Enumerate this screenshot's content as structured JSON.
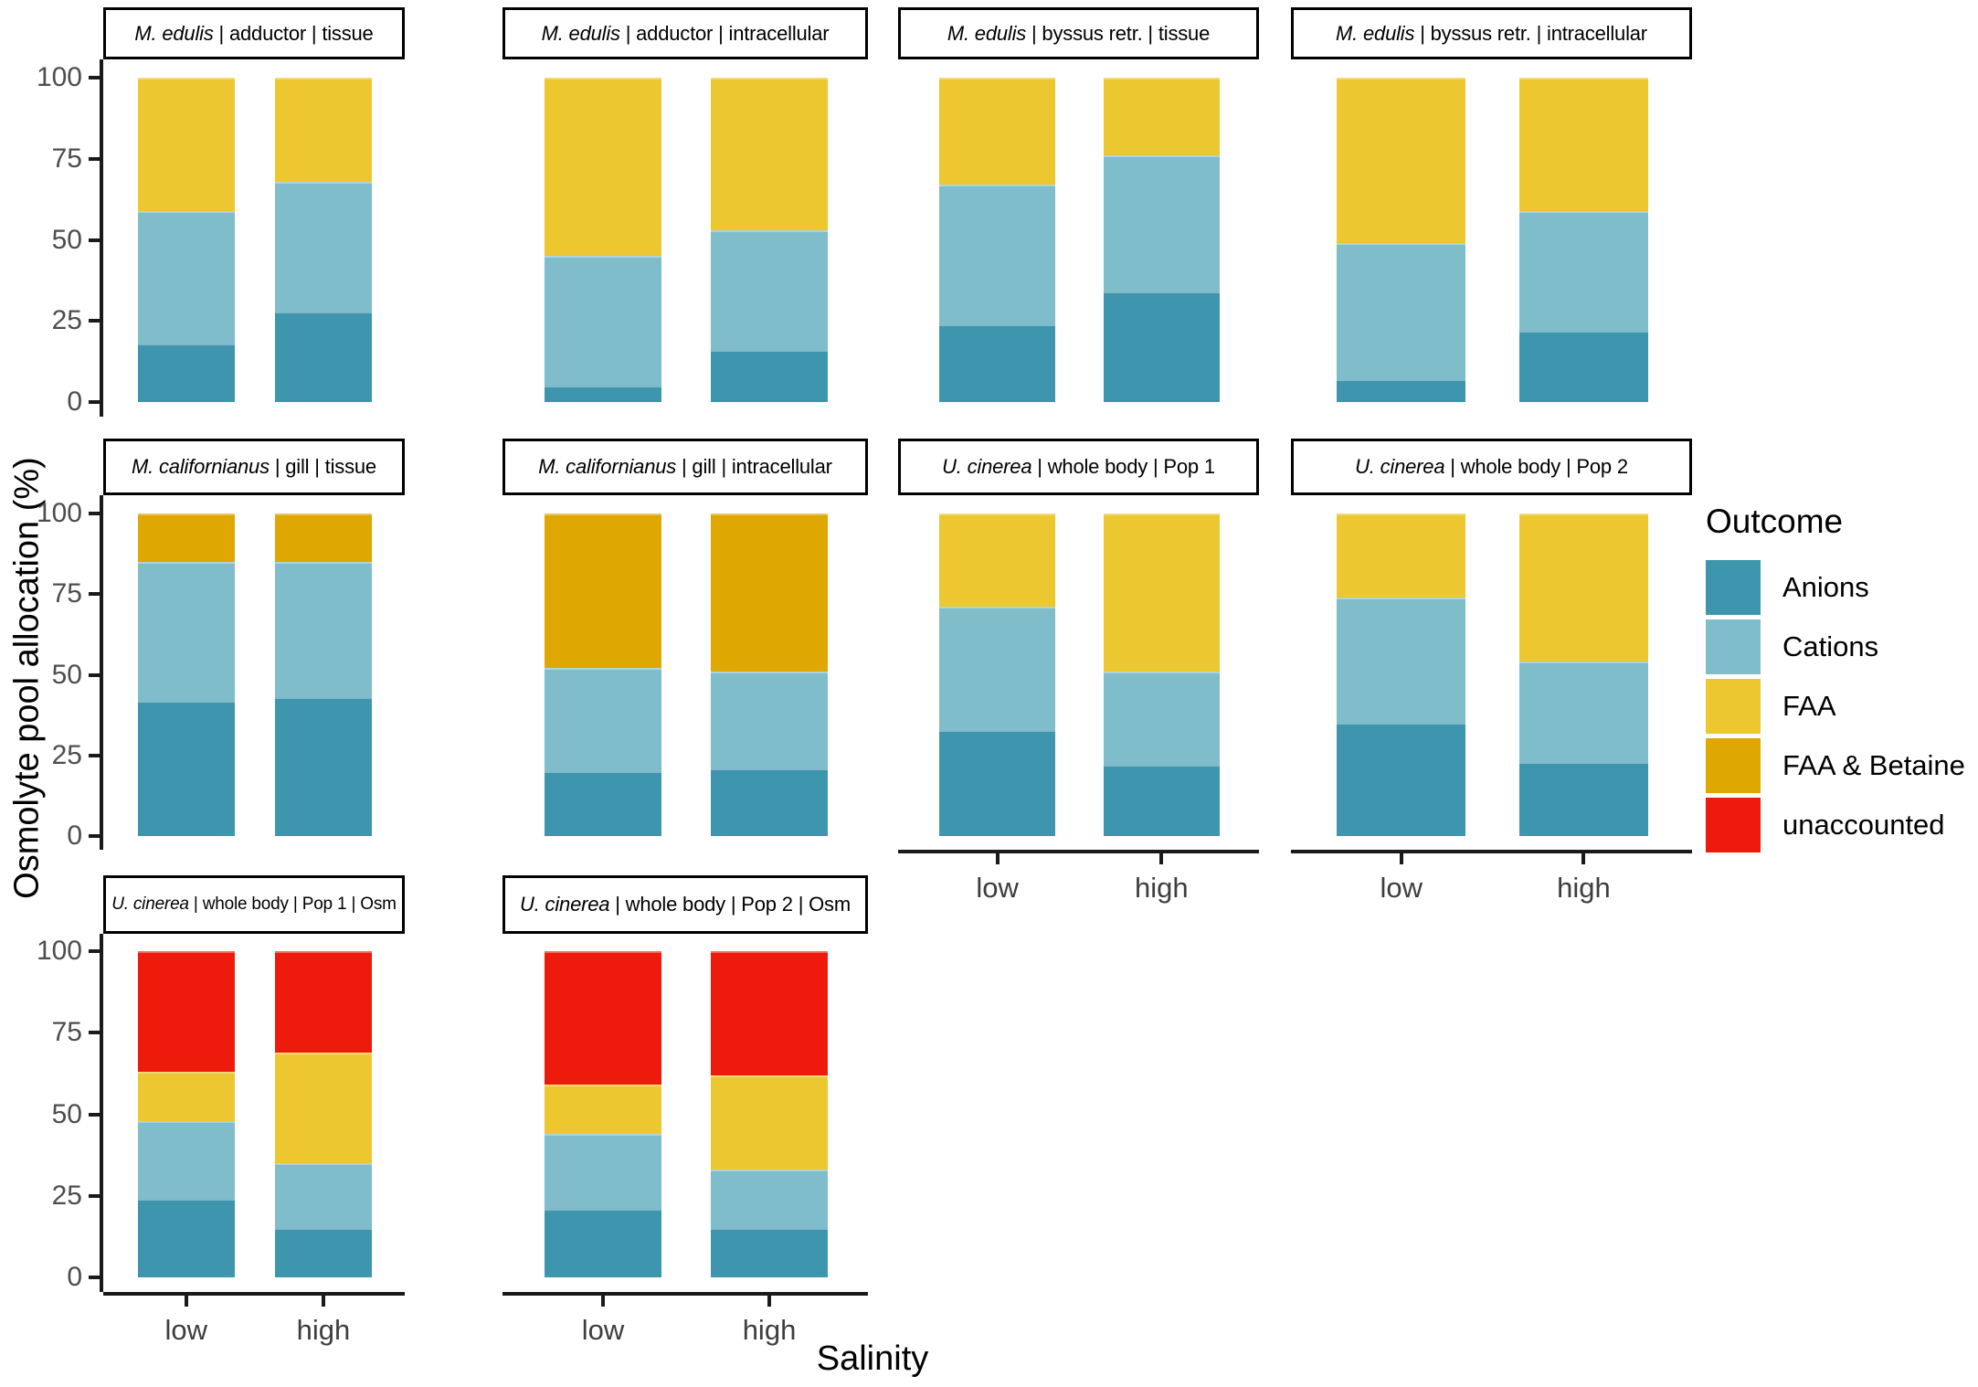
{
  "figure": {
    "y_axis_title": "Osmolyte pool allocation (%)",
    "x_axis_title": "Salinity",
    "y_ticks": [
      0,
      25,
      50,
      75,
      100
    ],
    "x_categories": [
      "low",
      "high"
    ]
  },
  "legend": {
    "title": "Outcome",
    "items": [
      {
        "label": "Anions",
        "color": "#3D96AE"
      },
      {
        "label": "Cations",
        "color": "#7FBDCB"
      },
      {
        "label": "FAA",
        "color": "#EDC72F"
      },
      {
        "label": "FAA & Betaine",
        "color": "#DFA702"
      },
      {
        "label": "unaccounted",
        "color": "#EE1B0C"
      }
    ]
  },
  "chart_data": {
    "type": "bar",
    "stacked": true,
    "unit": "percent",
    "ylim": [
      0,
      100
    ],
    "grid": false,
    "legend_position": "right",
    "x_categories": [
      "low",
      "high"
    ],
    "stack_order_bottom_to_top": [
      "Anions",
      "Cations",
      "FAA",
      "FAA & Betaine",
      "unaccounted"
    ],
    "panels": [
      {
        "species": "M. edulis",
        "rest": " | adductor | tissue",
        "row": 1,
        "col": 1,
        "bars": {
          "low": [
            {
              "outcome": "Anions",
              "value": 18
            },
            {
              "outcome": "Cations",
              "value": 41
            },
            {
              "outcome": "FAA",
              "value": 41
            }
          ],
          "high": [
            {
              "outcome": "Anions",
              "value": 28
            },
            {
              "outcome": "Cations",
              "value": 40
            },
            {
              "outcome": "FAA",
              "value": 32
            }
          ]
        }
      },
      {
        "species": "M. edulis",
        "rest": " | adductor | intracellular",
        "row": 1,
        "col": 2,
        "bars": {
          "low": [
            {
              "outcome": "Anions",
              "value": 5
            },
            {
              "outcome": "Cations",
              "value": 40
            },
            {
              "outcome": "FAA",
              "value": 55
            }
          ],
          "high": [
            {
              "outcome": "Anions",
              "value": 16
            },
            {
              "outcome": "Cations",
              "value": 37
            },
            {
              "outcome": "FAA",
              "value": 47
            }
          ]
        }
      },
      {
        "species": "M. edulis",
        "rest": " | byssus retr. | tissue",
        "row": 1,
        "col": 3,
        "bars": {
          "low": [
            {
              "outcome": "Anions",
              "value": 24
            },
            {
              "outcome": "Cations",
              "value": 43
            },
            {
              "outcome": "FAA",
              "value": 33
            }
          ],
          "high": [
            {
              "outcome": "Anions",
              "value": 34
            },
            {
              "outcome": "Cations",
              "value": 42
            },
            {
              "outcome": "FAA",
              "value": 24
            }
          ]
        }
      },
      {
        "species": "M. edulis",
        "rest": " | byssus retr. | intracellular",
        "row": 1,
        "col": 4,
        "bars": {
          "low": [
            {
              "outcome": "Anions",
              "value": 7
            },
            {
              "outcome": "Cations",
              "value": 42
            },
            {
              "outcome": "FAA",
              "value": 51
            }
          ],
          "high": [
            {
              "outcome": "Anions",
              "value": 22
            },
            {
              "outcome": "Cations",
              "value": 37
            },
            {
              "outcome": "FAA",
              "value": 41
            }
          ]
        }
      },
      {
        "species": "M. californianus",
        "rest": " | gill | tissue",
        "row": 2,
        "col": 1,
        "bars": {
          "low": [
            {
              "outcome": "Anions",
              "value": 42
            },
            {
              "outcome": "Cations",
              "value": 43
            },
            {
              "outcome": "FAA & Betaine",
              "value": 15
            }
          ],
          "high": [
            {
              "outcome": "Anions",
              "value": 43
            },
            {
              "outcome": "Cations",
              "value": 42
            },
            {
              "outcome": "FAA & Betaine",
              "value": 15
            }
          ]
        }
      },
      {
        "species": "M. californianus",
        "rest": " | gill | intracellular",
        "row": 2,
        "col": 2,
        "bars": {
          "low": [
            {
              "outcome": "Anions",
              "value": 20
            },
            {
              "outcome": "Cations",
              "value": 32
            },
            {
              "outcome": "FAA & Betaine",
              "value": 48
            }
          ],
          "high": [
            {
              "outcome": "Anions",
              "value": 21
            },
            {
              "outcome": "Cations",
              "value": 30
            },
            {
              "outcome": "FAA & Betaine",
              "value": 49
            }
          ]
        }
      },
      {
        "species": "U. cinerea",
        "rest": " | whole body | Pop 1",
        "row": 2,
        "col": 3,
        "bars": {
          "low": [
            {
              "outcome": "Anions",
              "value": 33
            },
            {
              "outcome": "Cations",
              "value": 38
            },
            {
              "outcome": "FAA",
              "value": 29
            }
          ],
          "high": [
            {
              "outcome": "Anions",
              "value": 22
            },
            {
              "outcome": "Cations",
              "value": 29
            },
            {
              "outcome": "FAA",
              "value": 49
            }
          ]
        }
      },
      {
        "species": "U. cinerea",
        "rest": " | whole body | Pop 2",
        "row": 2,
        "col": 4,
        "bars": {
          "low": [
            {
              "outcome": "Anions",
              "value": 35
            },
            {
              "outcome": "Cations",
              "value": 39
            },
            {
              "outcome": "FAA",
              "value": 26
            }
          ],
          "high": [
            {
              "outcome": "Anions",
              "value": 23
            },
            {
              "outcome": "Cations",
              "value": 31
            },
            {
              "outcome": "FAA",
              "value": 46
            }
          ]
        }
      },
      {
        "species": "U. cinerea",
        "rest": " | whole body | Pop 1 | Osm",
        "row": 3,
        "col": 1,
        "bars": {
          "low": [
            {
              "outcome": "Anions",
              "value": 24
            },
            {
              "outcome": "Cations",
              "value": 24
            },
            {
              "outcome": "FAA",
              "value": 15
            },
            {
              "outcome": "unaccounted",
              "value": 37
            }
          ],
          "high": [
            {
              "outcome": "Anions",
              "value": 15
            },
            {
              "outcome": "Cations",
              "value": 20
            },
            {
              "outcome": "FAA",
              "value": 34
            },
            {
              "outcome": "unaccounted",
              "value": 31
            }
          ]
        }
      },
      {
        "species": "U. cinerea",
        "rest": " | whole body | Pop 2 | Osm",
        "row": 3,
        "col": 2,
        "bars": {
          "low": [
            {
              "outcome": "Anions",
              "value": 21
            },
            {
              "outcome": "Cations",
              "value": 23
            },
            {
              "outcome": "FAA",
              "value": 15
            },
            {
              "outcome": "unaccounted",
              "value": 41
            }
          ],
          "high": [
            {
              "outcome": "Anions",
              "value": 15
            },
            {
              "outcome": "Cations",
              "value": 18
            },
            {
              "outcome": "FAA",
              "value": 29
            },
            {
              "outcome": "unaccounted",
              "value": 38
            }
          ]
        }
      }
    ]
  }
}
